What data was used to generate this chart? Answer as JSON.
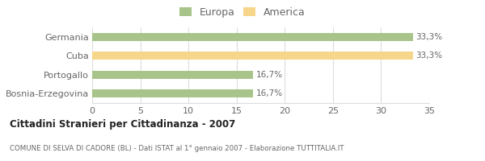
{
  "categories": [
    "Germania",
    "Cuba",
    "Portogallo",
    "Bosnia-Erzegovina"
  ],
  "values": [
    33.3,
    33.3,
    16.7,
    16.7
  ],
  "colors": [
    "#a8c48a",
    "#f5d68a",
    "#a8c48a",
    "#a8c48a"
  ],
  "labels": [
    "33,3%",
    "33,3%",
    "16,7%",
    "16,7%"
  ],
  "legend": [
    {
      "label": "Europa",
      "color": "#a8c48a"
    },
    {
      "label": "America",
      "color": "#f5d68a"
    }
  ],
  "xlim": [
    0,
    35
  ],
  "xticks": [
    0,
    5,
    10,
    15,
    20,
    25,
    30,
    35
  ],
  "title": "Cittadini Stranieri per Cittadinanza - 2007",
  "subtitle": "COMUNE DI SELVA DI CADORE (BL) - Dati ISTAT al 1° gennaio 2007 - Elaborazione TUTTITALIA.IT",
  "bar_height": 0.42,
  "bg_color": "#ffffff",
  "grid_color": "#dddddd",
  "text_color": "#666666",
  "title_color": "#222222",
  "subtitle_color": "#666666"
}
